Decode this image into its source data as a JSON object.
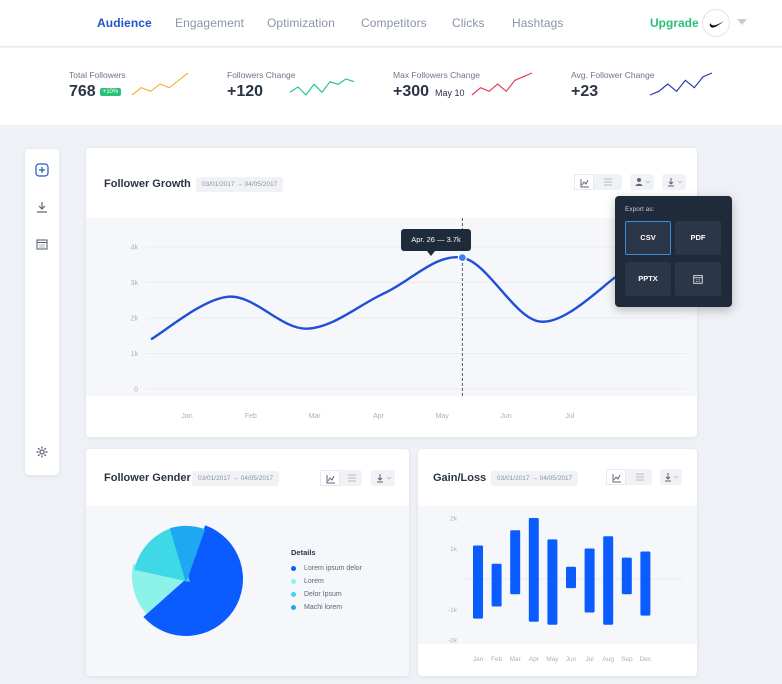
{
  "nav": {
    "tabs": [
      {
        "label": "Audience",
        "active": true
      },
      {
        "label": "Engagement"
      },
      {
        "label": "Optimization"
      },
      {
        "label": "Competitors"
      },
      {
        "label": "Clicks"
      },
      {
        "label": "Hashtags"
      }
    ],
    "upgrade_label": "Upgrade",
    "avatar_icon": "swoosh-logo-icon",
    "menu_icon": "caret-down-icon"
  },
  "stats": [
    {
      "label": "Total Followers",
      "value": "768",
      "badge": "+10%",
      "sparkline": [
        2,
        4,
        3,
        5,
        4,
        6,
        8
      ],
      "color": "#f2b43c"
    },
    {
      "label": "Followers Change",
      "value": "+120",
      "sparkline": [
        3,
        5,
        2,
        6,
        3,
        7,
        6,
        8,
        7
      ],
      "color": "#25c29a"
    },
    {
      "label": "Max Followers Change",
      "value": "+300",
      "sub": "May 10",
      "sparkline": [
        2,
        4,
        3,
        5,
        3,
        6,
        7,
        8
      ],
      "color": "#e0425b"
    },
    {
      "label": "Avg. Follower Change",
      "value": "+23",
      "sparkline": [
        2,
        3,
        5,
        3,
        6,
        4,
        7,
        8
      ],
      "color": "#2a3aa8"
    }
  ],
  "rail": {
    "icons": [
      "add-icon",
      "download-icon",
      "calendar-icon",
      "settings-icon"
    ]
  },
  "follower_growth": {
    "title": "Follower Growth",
    "date_range": "03/01/2017 → 04/05/2017",
    "tooltip": "Apr. 26 — 3.7k",
    "export": {
      "title": "Export as:",
      "options": [
        "CSV",
        "PDF",
        "PPTX"
      ],
      "selected": "CSV",
      "calendar_icon": "calendar-icon"
    }
  },
  "follower_gender": {
    "title": "Follower Gender",
    "date_range": "03/01/2017 → 04/05/2017",
    "legend_title": "Details"
  },
  "gain_loss": {
    "title": "Gain/Loss",
    "date_range": "03/01/2017 → 04/05/2017"
  },
  "chart_data": [
    {
      "type": "line",
      "title": "Follower Growth",
      "x": [
        "Jan",
        "Feb",
        "Mar",
        "Apr",
        "May",
        "Jun",
        "Jul"
      ],
      "y_ticks": [
        "0",
        "1k",
        "2k",
        "3k",
        "4k"
      ],
      "ylim": [
        0,
        4
      ],
      "series": [
        {
          "values": [
            1.4,
            2.6,
            1.7,
            2.7,
            3.7,
            1.9,
            3.2
          ]
        }
      ],
      "color": "#1f4fd6",
      "highlight": {
        "x": "Apr. 26",
        "y": 3.7
      }
    },
    {
      "type": "pie",
      "title": "Follower Gender",
      "labels": [
        "Lorem ipsum delor",
        "Lorem",
        "Delor Ipsum",
        "Machi lorem"
      ],
      "values": [
        58,
        15,
        17,
        10
      ],
      "colors": [
        "#0a5cff",
        "#8cf2ea",
        "#3fd8e6",
        "#1ea8f2"
      ]
    },
    {
      "type": "bar",
      "title": "Gain/Loss",
      "categories": [
        "Jan",
        "Feb",
        "Mar",
        "Apr",
        "May",
        "Jun",
        "Jul",
        "Aug",
        "Sep",
        "Dec"
      ],
      "y_ticks": [
        "2k",
        "1k",
        "-1k",
        "-2k"
      ],
      "ylim": [
        -2.4,
        2.4
      ],
      "ranges": [
        [
          -1.3,
          1.1
        ],
        [
          -0.9,
          0.5
        ],
        [
          -0.5,
          1.6
        ],
        [
          -1.4,
          2.0
        ],
        [
          -1.5,
          1.3
        ],
        [
          -0.3,
          0.4
        ],
        [
          -1.1,
          1.0
        ],
        [
          -1.5,
          1.4
        ],
        [
          -0.5,
          0.7
        ],
        [
          -1.2,
          0.9
        ]
      ],
      "color": "#0a5cff"
    }
  ]
}
